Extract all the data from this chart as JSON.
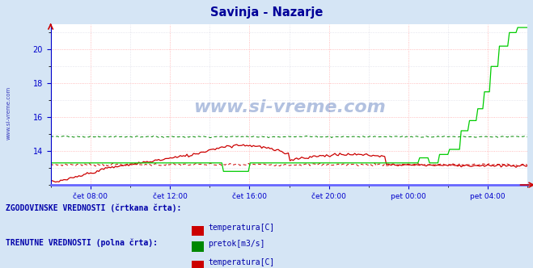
{
  "title": "Savinja - Nazarje",
  "title_color": "#000099",
  "bg_color": "#d5e5f5",
  "plot_bg_color": "#ffffff",
  "grid_color_major": "#ffaaaa",
  "grid_color_minor": "#ccccdd",
  "axis_color": "#0000cc",
  "tick_color": "#0000cc",
  "watermark": "www.si-vreme.com",
  "sidebar_text": "www.si-vreme.com",
  "sidebar_color": "#0000aa",
  "ylim": [
    12.0,
    21.5
  ],
  "yticks": [
    14,
    16,
    18,
    20
  ],
  "x_tick_labels": [
    "čet 08:00",
    "čet 12:00",
    "čet 16:00",
    "čet 20:00",
    "pet 00:00",
    "pet 04:00"
  ],
  "legend_section1_label": "ZGODOVINSKE VREDNOSTI (črtkana črta):",
  "legend_section2_label": "TRENUTNE VREDNOSTI (polna črta):",
  "legend_text_color": "#0000aa",
  "red_hist_color": "#cc0000",
  "green_hist_color": "#008800",
  "red_curr_color": "#cc0000",
  "green_curr_color": "#00cc00",
  "bottom_line_color": "#6666ff",
  "left_spine_color": "#0000cc"
}
